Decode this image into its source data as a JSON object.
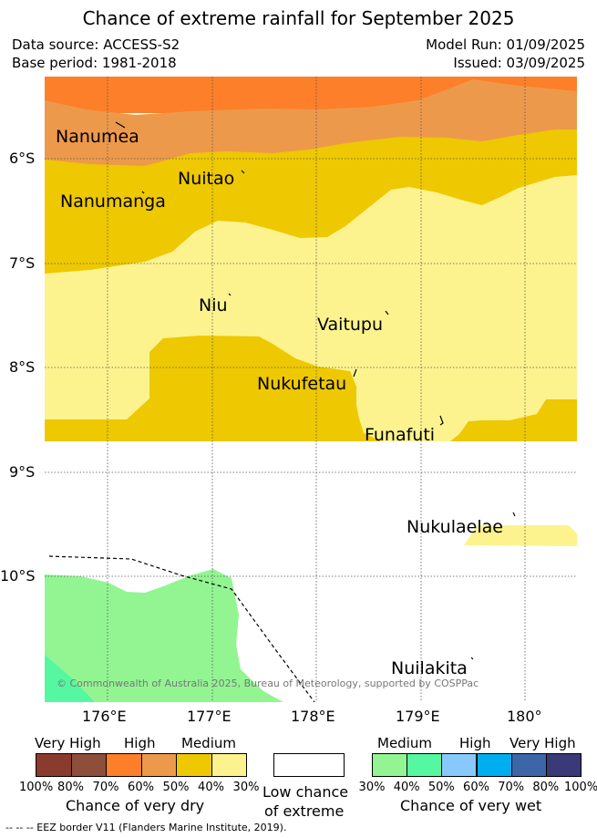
{
  "title": "Chance of extreme rainfall for September 2025",
  "meta": {
    "data_source": "Data source: ACCESS-S2",
    "base_period": "Base period: 1981-2018",
    "model_run": "Model Run: 01/09/2025",
    "issued": "Issued: 03/09/2025"
  },
  "axes": {
    "lat_labels": [
      "6°S",
      "7°S",
      "8°S",
      "9°S",
      "10°S"
    ],
    "lon_labels": [
      "176°E",
      "177°E",
      "178°E",
      "179°E",
      "180°"
    ]
  },
  "places": [
    {
      "name": "Nanumea",
      "label": "Nanumea"
    },
    {
      "name": "Nuitao",
      "label": "Nuitao"
    },
    {
      "name": "Nanumanga",
      "label": "Nanumanga"
    },
    {
      "name": "Niu",
      "label": "Niu"
    },
    {
      "name": "Vaitupu",
      "label": "Vaitupu"
    },
    {
      "name": "Nukufetau",
      "label": "Nukufetau"
    },
    {
      "name": "Funafuti",
      "label": "Funafuti"
    },
    {
      "name": "Nukulaelae",
      "label": "Nukulaelae"
    },
    {
      "name": "Nuilakita",
      "label": "Nuilakita"
    }
  ],
  "copyright": "© Commonwealth of Australia 2025, Bureau of Meteorology, supported by COSPPac",
  "legend": {
    "dry": {
      "headers": [
        "Very High",
        "High",
        "Medium"
      ],
      "colors": [
        "#8b3a2e",
        "#8e4f3a",
        "#fd7f29",
        "#ed994b",
        "#eec800",
        "#fcf38e"
      ],
      "ticks": [
        "100%",
        "80%",
        "70%",
        "60%",
        "50%",
        "40%",
        "30%"
      ],
      "title": "Chance of very dry"
    },
    "low": {
      "line1": "Low chance",
      "line2": "of extreme",
      "color": "#ffffff"
    },
    "wet": {
      "headers": [
        "Medium",
        "High",
        "Very High"
      ],
      "colors": [
        "#92f592",
        "#55f7a1",
        "#87c9fb",
        "#00aeef",
        "#3c66a8",
        "#3a3a78"
      ],
      "ticks": [
        "30%",
        "40%",
        "50%",
        "60%",
        "70%",
        "80%",
        "100%"
      ],
      "title": "Chance of very wet"
    }
  },
  "footer": "--  --  -- EEZ border V11 (Flanders Marine Institute, 2019).",
  "colors": {
    "dry_70": "#fd7f29",
    "dry_60": "#ed994b",
    "dry_50": "#eec800",
    "dry_40": "#fcf38e",
    "wet_30": "#92f592",
    "wet_40": "#55f7a1"
  }
}
